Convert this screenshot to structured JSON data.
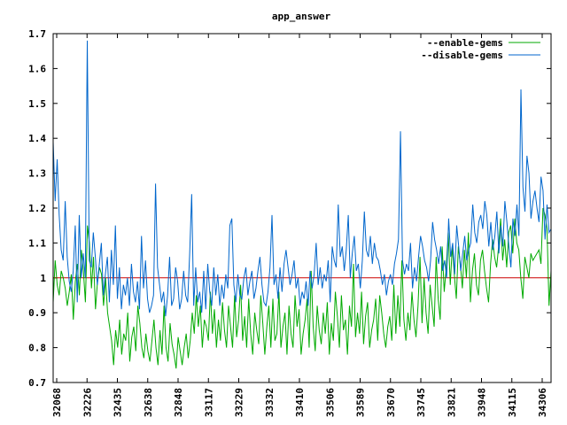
{
  "chart_data": {
    "type": "line",
    "title": "app_answer",
    "xlabel": "",
    "ylabel": "",
    "ylim": [
      0.7,
      1.7
    ],
    "y_ticks": [
      "0.7",
      "0.8",
      "0.9",
      "1",
      "1.1",
      "1.2",
      "1.3",
      "1.4",
      "1.5",
      "1.6",
      "1.7"
    ],
    "x_tick_labels": [
      "32068",
      "32226",
      "32435",
      "32638",
      "32848",
      "33117",
      "33229",
      "33332",
      "33410",
      "33506",
      "33589",
      "33670",
      "33745",
      "33821",
      "33948",
      "34115",
      "34306"
    ],
    "legend_position": "top-right",
    "reference_line": {
      "value": 1,
      "color": "#cc0000"
    },
    "series": [
      {
        "name": "--enable-gems",
        "color": "#00aa00",
        "values": [
          0.93,
          1.05,
          0.98,
          0.95,
          1.02,
          1.0,
          0.97,
          0.92,
          0.96,
          1.01,
          0.88,
          0.99,
          1.04,
          0.95,
          1.08,
          1.02,
          0.93,
          1.15,
          1.1,
          0.97,
          1.06,
          0.91,
          0.99,
          1.03,
          1.01,
          0.92,
          1.0,
          0.9,
          0.86,
          0.82,
          0.75,
          0.85,
          0.8,
          0.88,
          0.78,
          0.84,
          0.82,
          0.9,
          0.76,
          0.83,
          0.86,
          0.79,
          0.92,
          0.87,
          0.8,
          0.77,
          0.84,
          0.79,
          0.76,
          0.82,
          0.88,
          0.8,
          0.75,
          0.85,
          0.78,
          0.92,
          0.8,
          0.76,
          0.87,
          0.81,
          0.78,
          0.74,
          0.83,
          0.79,
          0.75,
          0.8,
          0.84,
          0.77,
          0.82,
          0.9,
          0.84,
          0.95,
          0.86,
          0.92,
          0.8,
          0.88,
          0.86,
          0.82,
          0.96,
          0.84,
          0.91,
          0.8,
          0.88,
          0.82,
          0.93,
          0.85,
          0.8,
          0.92,
          0.86,
          0.8,
          0.95,
          0.83,
          0.88,
          0.98,
          0.82,
          0.89,
          0.8,
          0.94,
          0.84,
          0.78,
          0.9,
          0.85,
          0.81,
          0.95,
          0.87,
          0.78,
          0.86,
          0.92,
          0.8,
          0.94,
          0.82,
          0.84,
          0.96,
          0.8,
          0.86,
          0.9,
          0.78,
          0.92,
          0.84,
          0.8,
          0.95,
          0.86,
          0.91,
          0.78,
          0.84,
          0.88,
          0.94,
          0.8,
          1.02,
          0.86,
          0.79,
          0.92,
          0.85,
          0.81,
          0.9,
          0.84,
          0.93,
          0.78,
          0.87,
          0.82,
          0.96,
          0.89,
          0.8,
          0.95,
          0.85,
          0.88,
          0.78,
          0.92,
          0.86,
          1.04,
          0.83,
          0.9,
          0.84,
          0.96,
          0.81,
          0.89,
          0.93,
          0.8,
          0.85,
          0.88,
          0.94,
          0.82,
          0.95,
          0.9,
          0.84,
          0.8,
          0.86,
          0.89,
          0.82,
          0.98,
          0.84,
          0.95,
          0.86,
          1.05,
          0.88,
          0.82,
          0.9,
          0.85,
          0.96,
          0.88,
          0.83,
          0.92,
          1.06,
          0.87,
          1.0,
          0.9,
          0.84,
          0.98,
          0.92,
          0.86,
          1.06,
          0.94,
          0.88,
          1.09,
          0.96,
          1.03,
          1.13,
          0.98,
          1.09,
          1.01,
          0.94,
          1.09,
          1.04,
          0.97,
          1.08,
          1.0,
          1.13,
          0.93,
          1.02,
          1.07,
          0.98,
          0.95,
          1.05,
          1.08,
          1.02,
          0.97,
          0.93,
          1.04,
          1.11,
          1.06,
          1.03,
          1.09,
          1.17,
          1.05,
          1.11,
          1.03,
          1.13,
          1.15,
          1.07,
          1.17,
          1.1,
          1.08,
          1.0,
          0.94,
          1.06,
          1.03,
          1.0,
          1.07,
          1.05,
          1.06,
          1.07,
          1.08,
          1.04,
          1.2,
          1.18,
          1.14,
          0.92,
          1.02
        ]
      },
      {
        "name": "--disable-gems",
        "color": "#0066cc",
        "values": [
          1.39,
          1.22,
          1.34,
          1.18,
          1.08,
          1.05,
          1.22,
          1.06,
          0.99,
          0.96,
          1.02,
          1.15,
          0.93,
          1.18,
          1.0,
          1.07,
          1.0,
          1.68,
          1.05,
          1.03,
          1.13,
          1.06,
          0.98,
          1.04,
          1.1,
          0.95,
          1.01,
          1.06,
          0.93,
          1.08,
          0.98,
          1.15,
          0.94,
          1.03,
          0.91,
          0.98,
          0.95,
          1.0,
          0.92,
          1.04,
          0.96,
          0.93,
          0.99,
          0.91,
          1.12,
          0.97,
          1.05,
          0.94,
          0.9,
          0.92,
          0.95,
          1.27,
          1.03,
          0.98,
          0.93,
          0.96,
          0.89,
          0.95,
          1.06,
          0.92,
          0.94,
          1.03,
          0.99,
          0.91,
          0.94,
          1.02,
          0.95,
          0.93,
          1.07,
          1.24,
          0.92,
          1.03,
          0.93,
          0.96,
          0.9,
          1.02,
          0.91,
          1.04,
          0.96,
          0.92,
          1.03,
          0.95,
          1.01,
          0.92,
          0.98,
          0.94,
          1.01,
          0.97,
          1.15,
          1.17,
          0.98,
          0.93,
          1.01,
          0.95,
          0.94,
          1.0,
          1.03,
          0.95,
          0.99,
          1.02,
          0.94,
          0.97,
          1.02,
          1.06,
          0.98,
          0.93,
          0.92,
          0.96,
          1.03,
          1.18,
          0.98,
          1.01,
          0.94,
          1.03,
          0.96,
          1.04,
          1.08,
          1.03,
          0.98,
          1.01,
          1.05,
          0.97,
          1.0,
          0.92,
          0.96,
          0.94,
          0.99,
          0.92,
          1.02,
          0.97,
          1.01,
          1.1,
          0.98,
          1.03,
          0.97,
          1.01,
          0.99,
          1.05,
          0.93,
          1.09,
          1.05,
          1.03,
          1.21,
          1.06,
          1.09,
          1.02,
          1.08,
          1.18,
          1.0,
          1.07,
          1.12,
          1.02,
          1.04,
          0.97,
          1.05,
          1.19,
          1.08,
          1.06,
          1.12,
          1.04,
          1.1,
          1.06,
          1.05,
          1.02,
          0.98,
          1.01,
          0.95,
          0.99,
          1.01,
          0.98,
          1.04,
          1.07,
          1.11,
          1.42,
          1.05,
          1.01,
          1.04,
          1.02,
          1.1,
          0.97,
          1.03,
          0.99,
          1.06,
          1.12,
          1.09,
          1.05,
          1.03,
          0.99,
          1.05,
          1.16,
          1.11,
          1.08,
          1.04,
          1.09,
          1.02,
          1.05,
          1.0,
          1.17,
          1.06,
          1.1,
          1.01,
          1.15,
          1.09,
          1.02,
          1.07,
          1.12,
          1.05,
          1.08,
          1.1,
          1.21,
          1.13,
          1.1,
          1.16,
          1.18,
          1.14,
          1.22,
          1.18,
          1.09,
          1.16,
          1.08,
          1.12,
          1.19,
          1.07,
          1.15,
          1.09,
          1.22,
          1.16,
          1.09,
          1.03,
          1.17,
          1.12,
          1.21,
          1.12,
          1.54,
          1.26,
          1.19,
          1.35,
          1.3,
          1.17,
          1.22,
          1.25,
          1.2,
          1.16,
          1.29,
          1.25,
          1.11,
          1.21,
          1.13,
          1.14
        ]
      }
    ]
  }
}
